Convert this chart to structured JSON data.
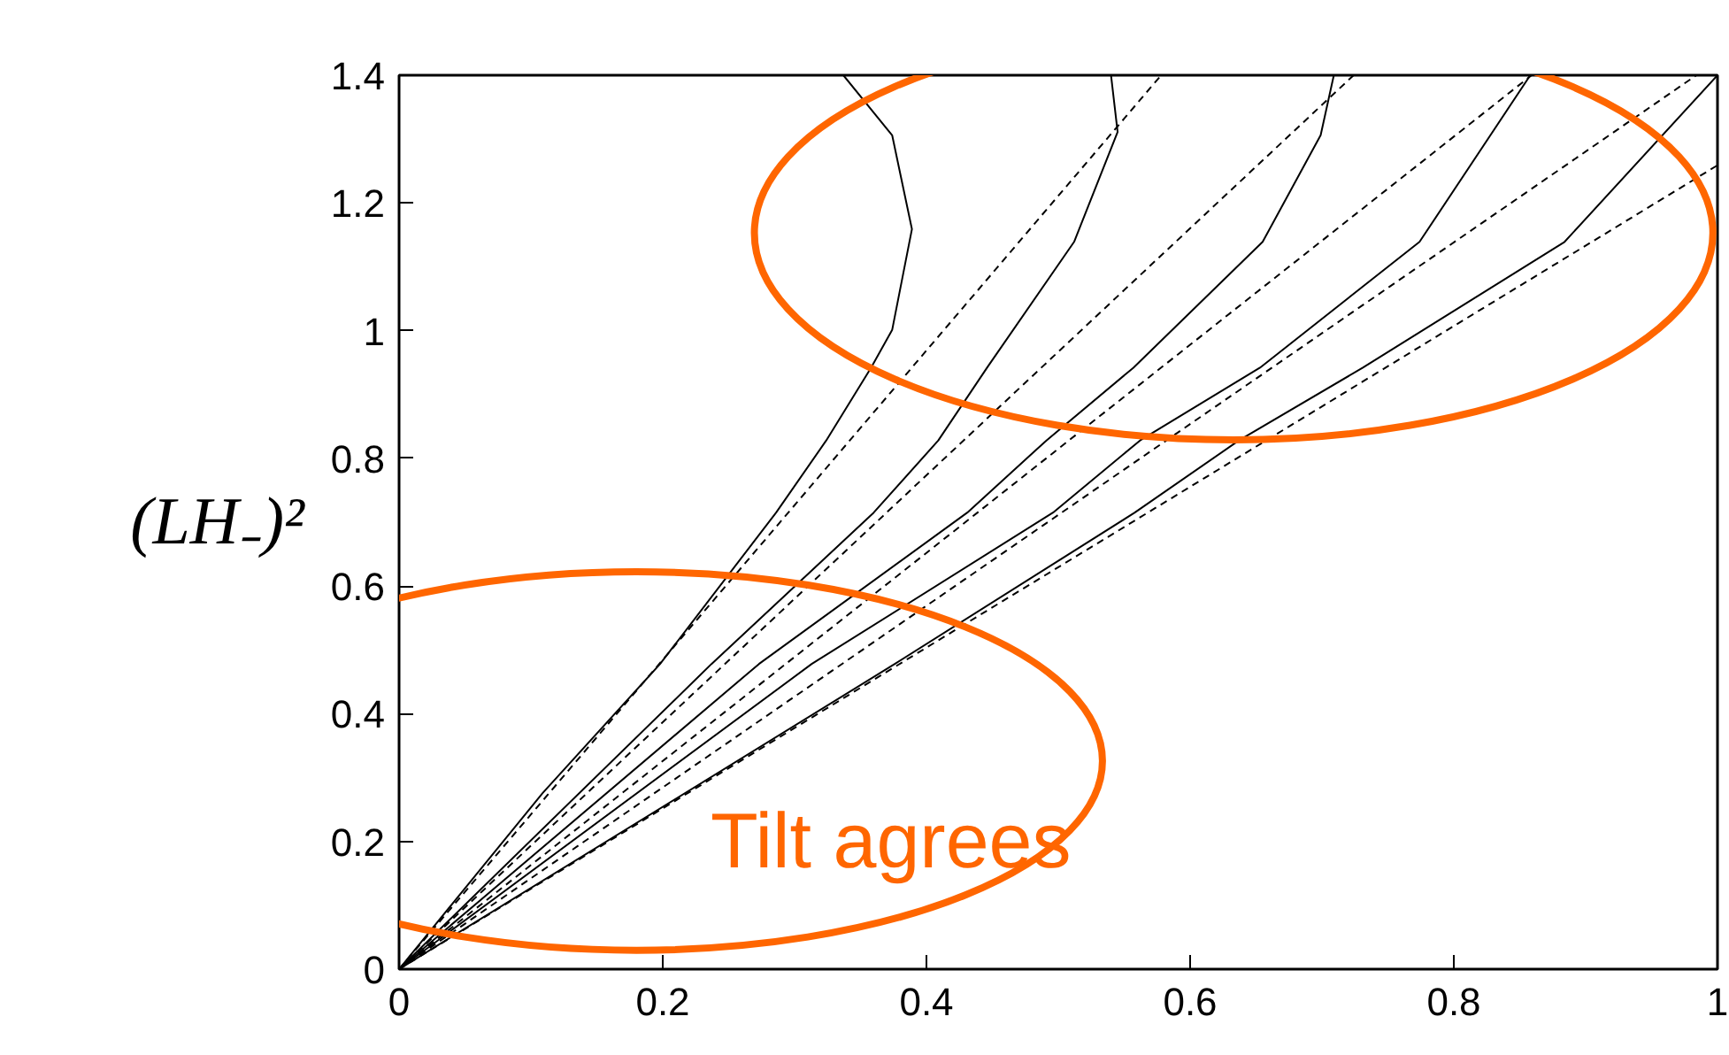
{
  "chart_data": {
    "type": "line",
    "ylabel": "(LH₋)²",
    "xlim": [
      0,
      1
    ],
    "ylim": [
      0,
      1.4
    ],
    "xticks": [
      0,
      0.2,
      0.4,
      0.6,
      0.8,
      1
    ],
    "yticks": [
      0,
      0.2,
      0.4,
      0.6,
      0.8,
      1,
      1.2,
      1.4
    ],
    "grid": false,
    "marker": "none",
    "annotations": [
      "Tilt agrees"
    ],
    "series": [
      {
        "color": "#000000",
        "line_style": "solid",
        "x": [
          0,
          0.109,
          0.198,
          0.286,
          0.324,
          0.358,
          0.374,
          0.389,
          0.374,
          0.337
        ],
        "values": [
          0,
          0.276,
          0.478,
          0.715,
          0.828,
          0.942,
          1.001,
          1.159,
          1.306,
          1.4
        ]
      },
      {
        "color": "#000000",
        "line_style": "dashed",
        "x": [
          0,
          0.578
        ],
        "values": [
          0,
          1.4
        ]
      },
      {
        "color": "#000000",
        "line_style": "solid",
        "x": [
          0,
          0.237,
          0.36,
          0.409,
          0.446,
          0.512,
          0.545,
          0.54
        ],
        "values": [
          0,
          0.478,
          0.715,
          0.828,
          0.942,
          1.139,
          1.311,
          1.4
        ]
      },
      {
        "color": "#000000",
        "line_style": "dashed",
        "x": [
          0,
          0.724
        ],
        "values": [
          0,
          1.4
        ]
      },
      {
        "color": "#000000",
        "line_style": "solid",
        "x": [
          0,
          0.273,
          0.431,
          0.491,
          0.557,
          0.655,
          0.699,
          0.709
        ],
        "values": [
          0,
          0.478,
          0.715,
          0.828,
          0.942,
          1.139,
          1.306,
          1.4
        ]
      },
      {
        "color": "#000000",
        "line_style": "dashed",
        "x": [
          0,
          0.859
        ],
        "values": [
          0,
          1.4
        ]
      },
      {
        "color": "#000000",
        "line_style": "solid",
        "x": [
          0,
          0.313,
          0.496,
          0.562,
          0.653,
          0.774,
          0.858
        ],
        "values": [
          0,
          0.478,
          0.715,
          0.828,
          0.942,
          1.139,
          1.4
        ]
      },
      {
        "color": "#000000",
        "line_style": "dashed",
        "x": [
          0,
          0.984
        ],
        "values": [
          0,
          1.4
        ]
      },
      {
        "color": "#000000",
        "line_style": "solid",
        "x": [
          0,
          0.376,
          0.558,
          0.637,
          0.731,
          0.884,
          1.0
        ],
        "values": [
          0,
          0.478,
          0.715,
          0.828,
          0.942,
          1.139,
          1.4
        ]
      },
      {
        "color": "#000000",
        "line_style": "dashed",
        "x": [
          0,
          1.0
        ],
        "values": [
          0,
          1.259
        ]
      }
    ]
  }
}
